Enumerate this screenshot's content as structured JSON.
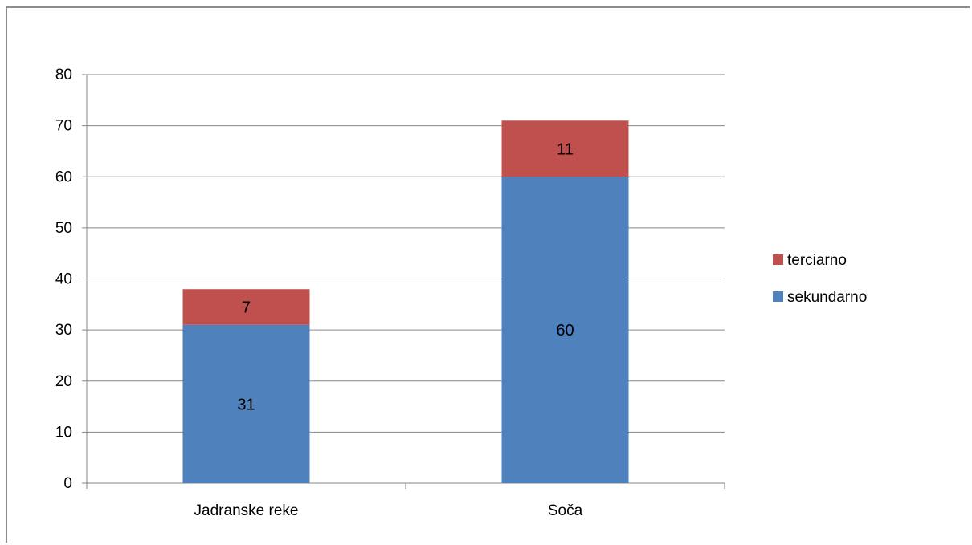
{
  "chart_data": {
    "type": "bar",
    "stacked": true,
    "categories": [
      "Jadranske reke",
      "Soča"
    ],
    "series": [
      {
        "name": "sekundarno",
        "values": [
          31,
          60
        ],
        "color": "#4f81bd"
      },
      {
        "name": "terciarno",
        "values": [
          7,
          11
        ],
        "color": "#c0504d"
      }
    ],
    "ylim": [
      0,
      80
    ],
    "yticks": [
      0,
      10,
      20,
      30,
      40,
      50,
      60,
      70,
      80
    ],
    "grid": true,
    "legend_position": "right",
    "data_labels": true
  }
}
